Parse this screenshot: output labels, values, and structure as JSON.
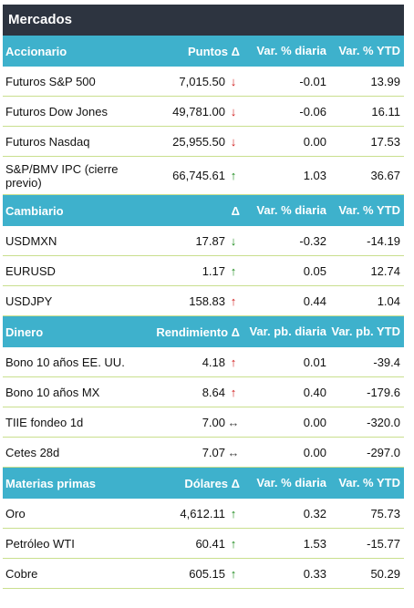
{
  "title": "Mercados",
  "sections": [
    {
      "name": "Accionario",
      "col_value": "Puntos Δ",
      "col_day": "Var. % diaria",
      "col_ytd": "Var. % YTD",
      "rows": [
        {
          "name": "Futuros S&P 500",
          "value": "7,015.50",
          "dir": "down",
          "day": "-0.01",
          "ytd": "13.99"
        },
        {
          "name": "Futuros Dow Jones",
          "value": "49,781.00",
          "dir": "down",
          "day": "-0.06",
          "ytd": "16.11"
        },
        {
          "name": "Futuros Nasdaq",
          "value": "25,955.50",
          "dir": "down",
          "day": "0.00",
          "ytd": "17.53"
        },
        {
          "name": "S&P/BMV IPC (cierre previo)",
          "value": "66,745.61",
          "dir": "up",
          "day": "1.03",
          "ytd": "36.67"
        }
      ]
    },
    {
      "name": "Cambiario",
      "col_value": "Δ",
      "col_day": "Var. % diaria",
      "col_ytd": "Var. % YTD",
      "rows": [
        {
          "name": "USDMXN",
          "value": "17.87",
          "dir": "down-green",
          "day": "-0.32",
          "ytd": "-14.19"
        },
        {
          "name": "EURUSD",
          "value": "1.17",
          "dir": "up",
          "day": "0.05",
          "ytd": "12.74"
        },
        {
          "name": "USDJPY",
          "value": "158.83",
          "dir": "up-red",
          "day": "0.44",
          "ytd": "1.04"
        }
      ]
    },
    {
      "name": "Dinero",
      "col_value": "Rendimiento Δ",
      "col_day": "Var. pb. diaria",
      "col_ytd": "Var. pb. YTD",
      "rows": [
        {
          "name": "Bono 10 años EE. UU.",
          "value": "4.18",
          "dir": "up-red",
          "day": "0.01",
          "ytd": "-39.4"
        },
        {
          "name": "Bono 10 años MX",
          "value": "8.64",
          "dir": "up-red",
          "day": "0.40",
          "ytd": "-179.6"
        },
        {
          "name": "TIIE fondeo 1d",
          "value": "7.00",
          "dir": "flat",
          "day": "0.00",
          "ytd": "-320.0"
        },
        {
          "name": "Cetes 28d",
          "value": "7.07",
          "dir": "flat",
          "day": "0.00",
          "ytd": "-297.0"
        }
      ]
    },
    {
      "name": "Materias primas",
      "col_value": "Dólares Δ",
      "col_day": "Var. % diaria",
      "col_ytd": "Var. % YTD",
      "rows": [
        {
          "name": "Oro",
          "value": "4,612.11",
          "dir": "up",
          "day": "0.32",
          "ytd": "75.73"
        },
        {
          "name": "Petróleo WTI",
          "value": "60.41",
          "dir": "up",
          "day": "1.53",
          "ytd": "-15.77"
        },
        {
          "name": "Cobre",
          "value": "605.15",
          "dir": "up",
          "day": "0.33",
          "ytd": "50.29"
        }
      ]
    }
  ],
  "arrows": {
    "up": {
      "glyph": "↑",
      "color": "#1b8a1b"
    },
    "up-red": {
      "glyph": "↑",
      "color": "#d01818"
    },
    "down": {
      "glyph": "↓",
      "color": "#d01818"
    },
    "down-green": {
      "glyph": "↓",
      "color": "#1b8a1b"
    },
    "flat": {
      "glyph": "↔",
      "color": "#444444"
    }
  }
}
